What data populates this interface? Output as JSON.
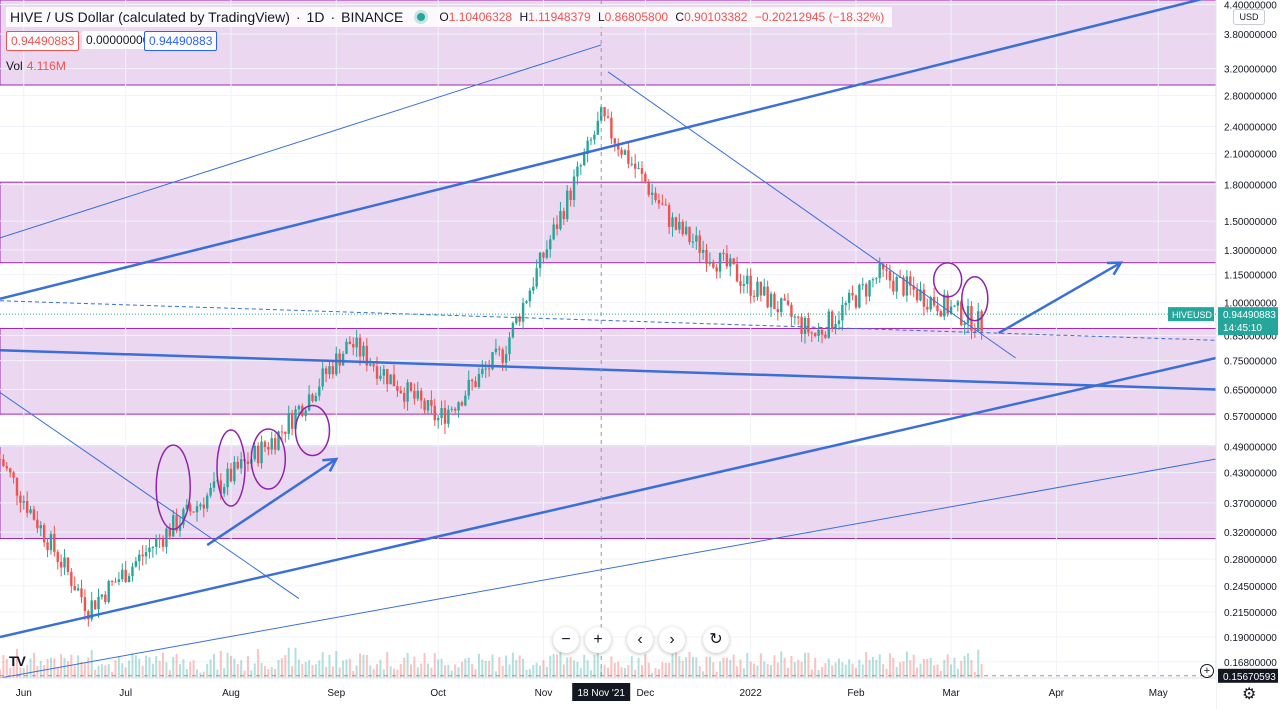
{
  "header": {
    "symbol": "HIVE / US Dollar (calculated by TradingView)",
    "interval": "1D",
    "exchange": "BINANCE",
    "open_label": "O",
    "open": "1.10406328",
    "high_label": "H",
    "high": "1.11948379",
    "low_label": "L",
    "low": "0.86805800",
    "close_label": "C",
    "close": "0.90103382",
    "change": "−0.20212945 (−18.32%)",
    "bid": "0.94490883",
    "spread": "0.00000000",
    "ask": "0.94490883",
    "vol_label": "Vol",
    "vol_value": "4.116M"
  },
  "currency_selector": "USD",
  "price_axis": {
    "ticks": [
      "4.40000000",
      "3.80000000",
      "3.20000000",
      "2.80000000",
      "2.40000000",
      "2.10000000",
      "1.80000000",
      "1.50000000",
      "1.30000000",
      "1.15000000",
      "1.00000000",
      "0.85000000",
      "0.75000000",
      "0.65000000",
      "0.57000000",
      "0.49000000",
      "0.43000000",
      "0.37000000",
      "0.32000000",
      "0.28000000",
      "0.24500000",
      "0.21500000",
      "0.19000000",
      "0.16800000"
    ],
    "symbol_tag": "HIVEUSD",
    "last_price": "0.94490883",
    "countdown": "14:45:10",
    "crosshair_price": "0.15670593",
    "last_price_color": "#26a69a"
  },
  "time_axis": {
    "labels": [
      "Jun",
      "Jul",
      "Aug",
      "Sep",
      "Oct",
      "Nov",
      "Dec",
      "2022",
      "Feb",
      "Mar",
      "Apr",
      "May"
    ],
    "crosshair_date": "18 Nov '21"
  },
  "controls": {
    "zoom_out": "−",
    "zoom_in": "+",
    "scroll_left": "‹",
    "scroll_right": "›",
    "reset": "↻"
  },
  "logo_text": "TV",
  "colors": {
    "up": "#26a69a",
    "down": "#ef5350",
    "zone_fill": "#e6cdeb",
    "zone_border": "#9c27b0",
    "trendline": "#3a6fd8",
    "annotation": "#8e24aa"
  },
  "chart_data": {
    "type": "candlestick",
    "y_scale": "log",
    "ylim": [
      0.155,
      4.5
    ],
    "x_range": [
      "2021-05-25",
      "2022-05-18"
    ],
    "ohlc_monthly_approx": [
      {
        "date": "2021-05-25",
        "open": 0.52,
        "high": 0.58,
        "low": 0.4,
        "close": 0.46
      },
      {
        "date": "2021-06-20",
        "open": 0.3,
        "high": 0.33,
        "low": 0.2,
        "close": 0.22
      },
      {
        "date": "2021-07-15",
        "open": 0.34,
        "high": 0.47,
        "low": 0.31,
        "close": 0.33
      },
      {
        "date": "2021-08-15",
        "open": 0.45,
        "high": 0.55,
        "low": 0.42,
        "close": 0.52
      },
      {
        "date": "2021-09-05",
        "open": 0.88,
        "high": 1.1,
        "low": 0.7,
        "close": 0.82
      },
      {
        "date": "2021-10-01",
        "open": 0.54,
        "high": 0.6,
        "low": 0.49,
        "close": 0.56
      },
      {
        "date": "2021-10-20",
        "open": 0.8,
        "high": 0.88,
        "low": 0.76,
        "close": 0.78
      },
      {
        "date": "2021-11-18",
        "open": 1.2,
        "high": 3.3,
        "low": 1.15,
        "close": 2.5
      },
      {
        "date": "2021-12-10",
        "open": 1.5,
        "high": 1.65,
        "low": 1.3,
        "close": 1.45
      },
      {
        "date": "2022-01-20",
        "open": 0.86,
        "high": 0.9,
        "low": 0.77,
        "close": 0.85
      },
      {
        "date": "2022-02-08",
        "open": 1.22,
        "high": 1.28,
        "low": 1.1,
        "close": 1.15
      },
      {
        "date": "2022-03-10",
        "open": 1.1,
        "high": 1.12,
        "low": 0.87,
        "close": 0.9
      }
    ],
    "horizontal_zones": [
      {
        "low": 2.95,
        "high": 4.5
      },
      {
        "low": 1.22,
        "high": 1.82
      },
      {
        "low": 0.575,
        "high": 0.88
      },
      {
        "low": 0.31,
        "high": 0.49
      }
    ],
    "legend": "none",
    "grid": true
  }
}
